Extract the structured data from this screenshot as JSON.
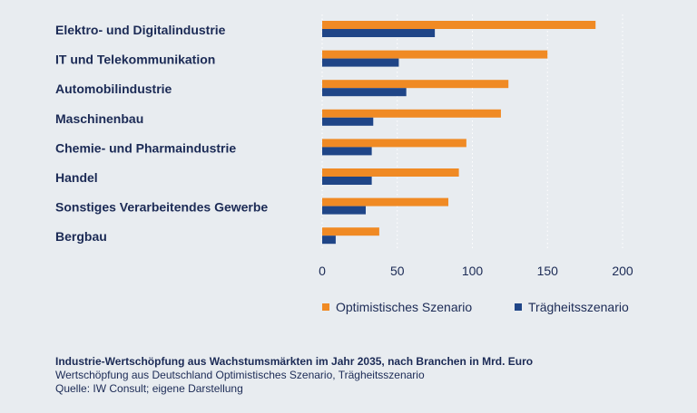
{
  "colors": {
    "background": "#e8ecf0",
    "optimistic": "#f08a24",
    "inertia": "#1f4587",
    "text": "#1b2a55",
    "grid": "#ffffff"
  },
  "chart_data": {
    "type": "bar",
    "orientation": "horizontal",
    "categories": [
      "Elektro- und Digitalindustrie",
      "IT und Telekommunikation",
      "Automobilindustrie",
      "Maschinenbau",
      "Chemie- und Pharmaindustrie",
      "Handel",
      "Sonstiges Verarbeitendes Gewerbe",
      "Bergbau"
    ],
    "series": [
      {
        "name": "Optimistisches Szenario",
        "values": [
          182,
          150,
          124,
          119,
          96,
          91,
          84,
          38
        ]
      },
      {
        "name": "Trägheitsszenario",
        "values": [
          75,
          51,
          56,
          34,
          33,
          33,
          29,
          9
        ]
      }
    ],
    "xlim": [
      0,
      200
    ],
    "xticks": [
      "0",
      "50",
      "100",
      "150",
      "200"
    ],
    "grid": "vertical dotted",
    "legend_position": "bottom-right"
  },
  "caption": {
    "title": "Industrie-Wertschöpfung aus Wachstumsmärkten im Jahr 2035, nach Branchen in Mrd. Euro",
    "subtitle": "Wertschöpfung aus Deutschland Optimistisches Szenario, Trägheitsszenario",
    "source": "Quelle: IW Consult; eigene Darstellung"
  }
}
